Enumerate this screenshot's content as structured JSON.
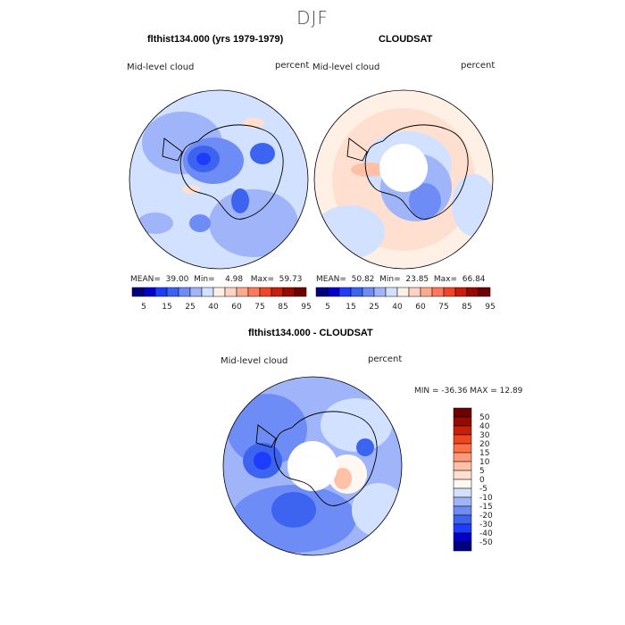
{
  "figure": {
    "season": "DJF"
  },
  "panels": [
    {
      "title": "flthist134.000 (yrs 1979-1979)",
      "var_label": "Mid-level cloud",
      "units": "percent",
      "stats": {
        "mean_label": "MEAN=",
        "mean": "39.00",
        "min_label": "Min=",
        "min": "4.98",
        "max_label": "Max=",
        "max": "59.73"
      }
    },
    {
      "title": "CLOUDSAT",
      "var_label": "Mid-level cloud",
      "units": "percent",
      "stats": {
        "mean_label": "MEAN=",
        "mean": "50.82",
        "min_label": "Min=",
        "min": "23.85",
        "max_label": "Max=",
        "max": "66.84"
      }
    },
    {
      "title": "flthist134.000 - CLOUDSAT",
      "var_label": "Mid-level cloud",
      "units": "percent",
      "range_text": "MIN = -36.36 MAX =  12.89"
    }
  ],
  "colorbar_abs": {
    "colors": [
      "#000080",
      "#0000c8",
      "#1e3cff",
      "#3c64f0",
      "#6e8cf5",
      "#a0b4fa",
      "#d2e1ff",
      "#fff0e6",
      "#ffd2c3",
      "#ffaa8c",
      "#ff785a",
      "#f04628",
      "#c81e0a",
      "#960a00",
      "#6e0000"
    ],
    "tick_labels": [
      "5",
      "15",
      "25",
      "40",
      "60",
      "75",
      "85",
      "95"
    ]
  },
  "colorbar_diff": {
    "colors": [
      "#000080",
      "#0000c8",
      "#1e3cff",
      "#3c64f0",
      "#6e8cf5",
      "#a0b4fa",
      "#d2e1ff",
      "#fff8f0",
      "#ffe0d0",
      "#ffc0a8",
      "#ff9a78",
      "#ff7046",
      "#f0461e",
      "#c81e0a",
      "#960a00",
      "#6e0000"
    ],
    "tick_labels": [
      "50",
      "40",
      "30",
      "20",
      "15",
      "10",
      "5",
      "0",
      "-5",
      "-10",
      "-15",
      "-20",
      "-30",
      "-40",
      "-50"
    ]
  }
}
